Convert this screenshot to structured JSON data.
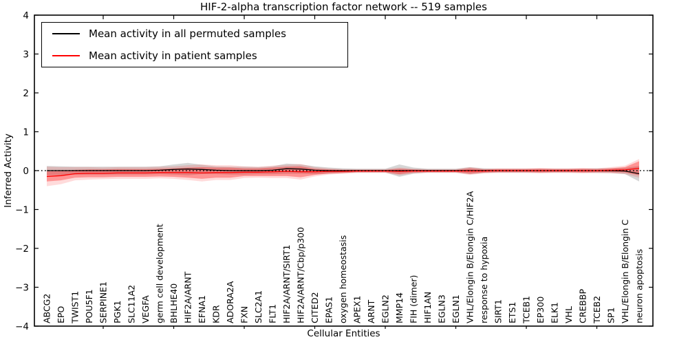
{
  "title": "HIF-2-alpha transcription factor network -- 519 samples",
  "legend": {
    "entries": [
      {
        "label": "Mean activity in all permuted samples",
        "color": "#000000"
      },
      {
        "label": "Mean activity in patient samples",
        "color": "#ff0000"
      }
    ]
  },
  "colors": {
    "permuted_line": "#000000",
    "patient_line": "#ff0000",
    "permuted_band": "rgba(0,0,0,0.16)",
    "patient_band_inner": "rgba(255,0,0,0.32)",
    "patient_band_outer": "rgba(255,0,0,0.14)",
    "zero_line": "#000000",
    "frame": "#000000"
  },
  "chart_data": {
    "type": "line",
    "title": "HIF-2-alpha transcription factor network -- 519 samples",
    "xlabel": "Cellular Entities",
    "ylabel": "Inferred Activity",
    "ylim": [
      -4,
      4
    ],
    "grid": false,
    "legend_position": "upper left",
    "yticks": [
      {
        "v": 4,
        "label": "4"
      },
      {
        "v": 3,
        "label": "3"
      },
      {
        "v": 2,
        "label": "2"
      },
      {
        "v": 1,
        "label": "1"
      },
      {
        "v": 0,
        "label": "0"
      },
      {
        "v": -1,
        "label": "−1"
      },
      {
        "v": -2,
        "label": "−2"
      },
      {
        "v": -3,
        "label": "−3"
      },
      {
        "v": -4,
        "label": "−4"
      }
    ],
    "x_major_ticks_at_category_numbers": [
      5,
      10,
      15,
      20,
      25,
      30,
      35,
      40
    ],
    "categories": [
      "ABCG2",
      "EPO",
      "TWIST1",
      "POU5F1",
      "SERPINE1",
      "PGK1",
      "SLC11A2",
      "VEGFA",
      "germ cell development",
      "BHLHE40",
      "HIF2A/ARNT",
      "EFNA1",
      "KDR",
      "ADORA2A",
      "FXN",
      "SLC2A1",
      "FLT1",
      "HIF2A/ARNT/SIRT1",
      "HIF2A/ARNT/Cbp/p300",
      "CITED2",
      "EPAS1",
      "oxygen homeostasis",
      "APEX1",
      "ARNT",
      "EGLN2",
      "MMP14",
      "FIH (dimer)",
      "HIF1AN",
      "EGLN3",
      "EGLN1",
      "VHL/Elongin B/Elongin C/HIF2A",
      "response to hypoxia",
      "SIRT1",
      "ETS1",
      "TCEB1",
      "EP300",
      "ELK1",
      "VHL",
      "CREBBP",
      "TCEB2",
      "SP1",
      "VHL/Elongin B/Elongin C",
      "neuron apoptosis"
    ],
    "series": [
      {
        "name": "Mean activity in all permuted samples",
        "color": "#000000",
        "values": [
          0,
          0,
          0,
          0,
          0,
          0,
          0,
          0,
          0.01,
          0.03,
          0.04,
          0.03,
          0.01,
          0,
          0,
          0,
          0.01,
          0.05,
          0.04,
          0.01,
          0,
          0,
          0,
          0,
          0,
          0,
          0,
          0,
          0,
          0,
          0,
          0,
          0,
          0,
          0,
          0,
          0,
          0,
          0,
          0,
          0,
          -0.01,
          -0.08
        ],
        "band_halfwidth": [
          0.12,
          0.11,
          0.1,
          0.1,
          0.1,
          0.1,
          0.1,
          0.1,
          0.1,
          0.13,
          0.16,
          0.12,
          0.1,
          0.1,
          0.1,
          0.09,
          0.1,
          0.13,
          0.12,
          0.1,
          0.08,
          0.06,
          0.05,
          0.05,
          0.05,
          0.16,
          0.08,
          0.05,
          0.05,
          0.05,
          0.09,
          0.06,
          0.05,
          0.05,
          0.05,
          0.05,
          0.05,
          0.05,
          0.05,
          0.06,
          0.06,
          0.08,
          0.2
        ]
      },
      {
        "name": "Mean activity in patient samples",
        "color": "#ff0000",
        "values": [
          -0.15,
          -0.13,
          -0.08,
          -0.07,
          -0.07,
          -0.06,
          -0.06,
          -0.06,
          -0.05,
          -0.05,
          -0.05,
          -0.06,
          -0.05,
          -0.05,
          -0.04,
          -0.04,
          -0.03,
          -0.02,
          -0.03,
          -0.03,
          -0.02,
          -0.02,
          -0.01,
          -0.01,
          -0.01,
          -0.02,
          -0.01,
          -0.01,
          -0.01,
          -0.01,
          -0.01,
          -0.01,
          0,
          0,
          0,
          0,
          0,
          0,
          0,
          0,
          0.01,
          0.02,
          0.06
        ],
        "band_inner_halfwidth": [
          0.13,
          0.12,
          0.1,
          0.1,
          0.1,
          0.1,
          0.1,
          0.1,
          0.1,
          0.11,
          0.13,
          0.15,
          0.13,
          0.13,
          0.1,
          0.1,
          0.11,
          0.12,
          0.14,
          0.08,
          0.05,
          0.04,
          0.03,
          0.03,
          0.03,
          0.07,
          0.04,
          0.03,
          0.03,
          0.03,
          0.07,
          0.04,
          0.04,
          0.04,
          0.04,
          0.05,
          0.04,
          0.04,
          0.05,
          0.04,
          0.05,
          0.07,
          0.18
        ],
        "band_outer_halfwidth": [
          0.25,
          0.22,
          0.17,
          0.16,
          0.15,
          0.15,
          0.15,
          0.15,
          0.15,
          0.16,
          0.19,
          0.22,
          0.19,
          0.19,
          0.15,
          0.14,
          0.16,
          0.17,
          0.2,
          0.12,
          0.08,
          0.06,
          0.05,
          0.05,
          0.05,
          0.1,
          0.06,
          0.05,
          0.05,
          0.05,
          0.1,
          0.06,
          0.06,
          0.06,
          0.06,
          0.07,
          0.06,
          0.06,
          0.07,
          0.06,
          0.08,
          0.11,
          0.24
        ]
      }
    ],
    "zero_reference_line": {
      "value": 0,
      "style": "dotted",
      "color": "#000000"
    }
  }
}
